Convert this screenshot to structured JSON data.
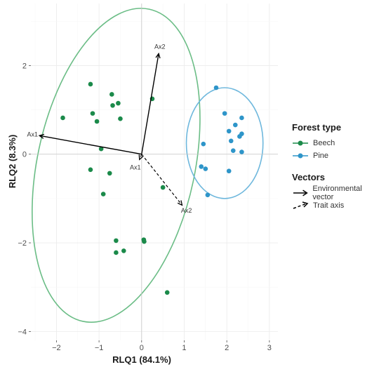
{
  "chart_data": {
    "type": "scatter",
    "title": "",
    "xlabel": "RLQ1 (84.1%)",
    "ylabel": "RLQ2 (8.3%)",
    "xlim": [
      -2.6,
      3.2
    ],
    "ylim": [
      -4.2,
      3.4
    ],
    "x_ticks": [
      -2,
      -1,
      0,
      1,
      2,
      3
    ],
    "y_ticks": [
      -4,
      -2,
      0,
      2
    ],
    "grid": true,
    "legend_placement": "right",
    "series": [
      {
        "name": "Beech",
        "color": "#1b8a4a",
        "points": [
          [
            -1.2,
            1.58
          ],
          [
            -0.7,
            1.35
          ],
          [
            -0.55,
            1.15
          ],
          [
            -0.68,
            1.1
          ],
          [
            -1.15,
            0.92
          ],
          [
            -1.85,
            0.82
          ],
          [
            -1.05,
            0.74
          ],
          [
            -0.5,
            0.8
          ],
          [
            0.25,
            1.25
          ],
          [
            -0.95,
            0.12
          ],
          [
            -1.2,
            -0.35
          ],
          [
            -0.75,
            -0.43
          ],
          [
            -0.9,
            -0.9
          ],
          [
            0.5,
            -0.75
          ],
          [
            -0.6,
            -1.95
          ],
          [
            0.05,
            -1.93
          ],
          [
            0.06,
            -1.97
          ],
          [
            -0.6,
            -2.22
          ],
          [
            -0.42,
            -2.18
          ],
          [
            0.6,
            -3.12
          ]
        ],
        "ellipse": {
          "cx": -0.6,
          "cy": -0.25,
          "rx": 1.85,
          "ry": 3.6,
          "angle_deg": 12
        }
      },
      {
        "name": "Pine",
        "color": "#2e95c9",
        "points": [
          [
            1.75,
            1.5
          ],
          [
            1.95,
            0.92
          ],
          [
            2.35,
            0.82
          ],
          [
            2.2,
            0.66
          ],
          [
            2.05,
            0.52
          ],
          [
            2.35,
            0.46
          ],
          [
            2.3,
            0.4
          ],
          [
            2.1,
            0.3
          ],
          [
            1.45,
            0.23
          ],
          [
            2.35,
            0.05
          ],
          [
            2.15,
            0.08
          ],
          [
            1.4,
            -0.28
          ],
          [
            1.5,
            -0.33
          ],
          [
            2.05,
            -0.38
          ],
          [
            1.55,
            -0.92
          ]
        ],
        "ellipse": {
          "cx": 1.95,
          "cy": 0.25,
          "rx": 0.9,
          "ry": 1.25,
          "angle_deg": 0
        }
      }
    ],
    "vectors": [
      {
        "kind": "environmental",
        "label": "Ax1",
        "from": [
          0,
          0
        ],
        "to": [
          -2.4,
          0.42
        ]
      },
      {
        "kind": "environmental",
        "label": "Ax2",
        "from": [
          0,
          0
        ],
        "to": [
          0.4,
          2.27
        ]
      },
      {
        "kind": "trait",
        "label": "Ax1",
        "from": [
          0,
          0
        ],
        "to": [
          -0.05,
          -0.12
        ]
      },
      {
        "kind": "trait",
        "label": "Ax2",
        "from": [
          0,
          0
        ],
        "to": [
          0.95,
          -1.15
        ]
      }
    ]
  },
  "legend": {
    "forest_title": "Forest type",
    "forest_items": [
      "Beech",
      "Pine"
    ],
    "vectors_title": "Vectors",
    "vector_items": [
      "Environmental vector",
      "Trait axis"
    ]
  },
  "colors": {
    "beech": "#1b8a4a",
    "beech_ellipse": "#6bbd86",
    "pine": "#2e95c9",
    "pine_ellipse": "#6fb8dd"
  }
}
